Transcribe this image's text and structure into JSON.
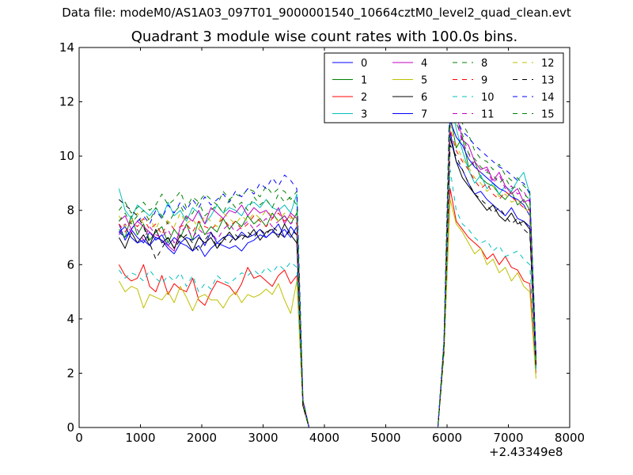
{
  "chart_data": {
    "type": "line",
    "suptitle": "Data file: modeM0/AS1A03_097T01_9000001540_10664cztM0_level2_quad_clean.evt",
    "title": "Quadrant 3 module wise count rates with 100.0s bins.",
    "xlabel": "",
    "ylabel": "",
    "x_offset_label": "+2.43349e8",
    "xlim": [
      0,
      8000
    ],
    "ylim": [
      0,
      14
    ],
    "xticks": [
      0,
      1000,
      2000,
      3000,
      4000,
      5000,
      6000,
      7000,
      8000
    ],
    "yticks": [
      0,
      2,
      4,
      6,
      8,
      10,
      12,
      14
    ],
    "legend_position": "top-right",
    "legend_columns": 4,
    "x": [
      650,
      750,
      850,
      950,
      1050,
      1150,
      1250,
      1350,
      1450,
      1550,
      1650,
      1750,
      1850,
      1950,
      2050,
      2150,
      2250,
      2350,
      2450,
      2550,
      2650,
      2750,
      2850,
      2950,
      3050,
      3150,
      3250,
      3350,
      3450,
      3550,
      3650,
      3750,
      5850,
      5950,
      6050,
      6150,
      6250,
      6350,
      6450,
      6550,
      6650,
      6750,
      6850,
      6950,
      7050,
      7150,
      7250,
      7350,
      7450
    ],
    "series": [
      {
        "name": "0",
        "color": "#0000ff",
        "dash": "solid",
        "values": [
          7.5,
          6.9,
          7.3,
          7.0,
          6.8,
          7.2,
          6.9,
          7.1,
          6.7,
          7.0,
          6.8,
          7.0,
          6.9,
          7.1,
          6.7,
          7.2,
          6.8,
          7.0,
          7.1,
          6.9,
          7.2,
          7.0,
          7.1,
          7.3,
          7.0,
          7.2,
          7.1,
          7.3,
          7.0,
          7.4,
          0.8,
          0,
          0,
          3.0,
          10.9,
          9.8,
          9.5,
          9.0,
          8.6,
          8.7,
          8.4,
          8.2,
          8.0,
          7.8,
          8.1,
          7.7,
          7.6,
          7.4,
          2.3
        ]
      },
      {
        "name": "1",
        "color": "#008000",
        "dash": "solid",
        "values": [
          7.3,
          7.0,
          7.8,
          7.1,
          7.5,
          6.9,
          7.2,
          7.4,
          6.8,
          7.3,
          7.0,
          7.5,
          6.9,
          7.6,
          7.1,
          7.4,
          7.2,
          7.7,
          7.3,
          7.6,
          7.4,
          7.8,
          7.5,
          7.7,
          7.4,
          7.9,
          7.6,
          7.8,
          7.5,
          7.9,
          0.9,
          0,
          0,
          3.0,
          11.5,
          10.3,
          10.7,
          9.6,
          9.8,
          9.2,
          9.0,
          8.9,
          8.6,
          8.4,
          8.7,
          8.2,
          8.4,
          8.0,
          2.4
        ]
      },
      {
        "name": "2",
        "color": "#ff0000",
        "dash": "solid",
        "values": [
          6.0,
          5.6,
          5.4,
          5.5,
          6.0,
          5.2,
          5.0,
          5.6,
          4.9,
          5.3,
          5.1,
          5.0,
          5.5,
          4.7,
          4.5,
          5.0,
          5.4,
          5.3,
          5.2,
          4.9,
          5.3,
          5.9,
          5.5,
          5.6,
          5.4,
          5.2,
          5.6,
          5.8,
          5.3,
          5.6,
          0.8,
          0,
          0,
          2.8,
          8.8,
          7.6,
          7.3,
          7.0,
          6.8,
          6.6,
          6.2,
          6.4,
          6.0,
          6.3,
          5.9,
          5.8,
          5.4,
          5.3,
          2.0
        ]
      },
      {
        "name": "3",
        "color": "#00bfbf",
        "dash": "solid",
        "values": [
          8.8,
          8.0,
          7.7,
          8.2,
          8.0,
          7.8,
          8.1,
          7.7,
          8.3,
          7.8,
          8.0,
          7.6,
          8.1,
          7.9,
          7.5,
          7.8,
          8.2,
          7.9,
          8.1,
          8.0,
          7.8,
          8.2,
          8.3,
          8.1,
          8.4,
          8.1,
          8.0,
          8.2,
          7.9,
          8.6,
          1.0,
          0,
          0,
          3.2,
          12.1,
          11.0,
          10.2,
          9.5,
          9.0,
          9.3,
          8.8,
          9.0,
          8.6,
          8.9,
          8.7,
          9.1,
          9.4,
          8.6,
          2.6
        ]
      },
      {
        "name": "4",
        "color": "#bf00bf",
        "dash": "solid",
        "values": [
          7.6,
          7.8,
          7.3,
          7.6,
          7.4,
          7.2,
          7.0,
          6.9,
          6.7,
          6.5,
          7.4,
          7.8,
          7.6,
          8.0,
          7.5,
          8.1,
          7.9,
          7.7,
          8.0,
          7.9,
          8.2,
          7.8,
          8.1,
          7.9,
          8.0,
          7.7,
          8.1,
          7.5,
          7.9,
          7.7,
          1.0,
          0,
          0,
          3.1,
          11.5,
          11.6,
          10.6,
          10.4,
          9.8,
          9.5,
          9.6,
          9.1,
          9.4,
          8.9,
          8.6,
          8.8,
          8.3,
          8.4,
          2.5
        ]
      },
      {
        "name": "5",
        "color": "#bfbf00",
        "dash": "solid",
        "values": [
          5.4,
          5.0,
          5.2,
          5.1,
          4.4,
          4.9,
          4.8,
          4.7,
          5.0,
          4.6,
          5.2,
          4.8,
          4.3,
          4.8,
          4.9,
          4.7,
          4.7,
          4.4,
          4.8,
          5.0,
          4.6,
          4.9,
          4.8,
          4.9,
          5.1,
          4.9,
          5.3,
          4.7,
          4.2,
          5.4,
          0.8,
          0,
          0,
          2.7,
          8.4,
          7.5,
          7.2,
          6.8,
          6.4,
          6.6,
          6.0,
          6.2,
          5.7,
          5.9,
          5.4,
          5.7,
          5.2,
          5.0,
          1.8
        ]
      },
      {
        "name": "6",
        "color": "#000000",
        "dash": "solid",
        "values": [
          7.0,
          6.6,
          7.2,
          6.8,
          7.1,
          6.7,
          7.3,
          6.8,
          7.0,
          6.6,
          7.1,
          6.9,
          6.5,
          7.0,
          6.8,
          7.0,
          6.6,
          6.9,
          7.2,
          6.9,
          7.1,
          7.0,
          7.3,
          6.9,
          7.2,
          7.3,
          7.0,
          7.5,
          7.1,
          6.8,
          0.8,
          0,
          0,
          2.9,
          10.7,
          9.8,
          9.2,
          8.9,
          8.6,
          8.3,
          8.0,
          8.2,
          7.8,
          7.6,
          7.9,
          7.5,
          7.6,
          7.3,
          2.2
        ]
      },
      {
        "name": "7",
        "color": "#0000ff",
        "dash": "solid",
        "values": [
          7.2,
          7.4,
          7.0,
          6.8,
          6.9,
          6.7,
          7.0,
          6.9,
          6.6,
          6.4,
          6.8,
          6.7,
          6.5,
          6.7,
          6.3,
          6.6,
          6.8,
          6.7,
          6.6,
          6.7,
          6.5,
          6.8,
          6.9,
          7.1,
          7.0,
          7.2,
          7.5,
          7.0,
          7.4,
          7.1,
          0.9,
          0,
          0,
          3.0,
          11.3,
          10.7,
          10.4,
          9.9,
          9.6,
          9.4,
          9.2,
          9.0,
          8.8,
          8.7,
          8.5,
          8.4,
          8.2,
          7.8,
          2.4
        ]
      },
      {
        "name": "8",
        "color": "#008000",
        "dash": "dashed",
        "values": [
          8.0,
          8.3,
          7.9,
          8.1,
          8.3,
          8.0,
          8.2,
          8.6,
          8.2,
          8.4,
          8.7,
          8.1,
          8.5,
          8.3,
          8.6,
          8.4,
          8.2,
          8.7,
          8.4,
          8.6,
          8.5,
          8.8,
          8.7,
          8.5,
          8.9,
          8.6,
          8.8,
          8.7,
          8.4,
          8.7,
          1.0,
          0,
          0,
          3.1,
          13.0,
          11.8,
          11.2,
          10.8,
          10.2,
          9.9,
          9.8,
          9.5,
          9.7,
          9.3,
          9.1,
          9.2,
          8.9,
          8.7,
          2.7
        ]
      },
      {
        "name": "9",
        "color": "#ff0000",
        "dash": "dashed",
        "values": [
          7.5,
          7.2,
          7.6,
          7.4,
          7.7,
          7.3,
          7.5,
          7.1,
          7.6,
          7.3,
          7.4,
          7.5,
          7.2,
          7.6,
          7.4,
          7.3,
          7.5,
          7.7,
          7.4,
          7.6,
          7.3,
          7.5,
          7.8,
          7.6,
          7.4,
          7.7,
          7.9,
          7.6,
          7.8,
          7.5,
          0.9,
          0,
          0,
          3.0,
          11.0,
          10.2,
          9.8,
          9.5,
          9.1,
          8.8,
          9.0,
          8.6,
          8.4,
          8.7,
          8.5,
          8.3,
          8.1,
          8.0,
          2.5
        ]
      },
      {
        "name": "10",
        "color": "#00bfbf",
        "dash": "dashed",
        "values": [
          5.8,
          5.5,
          5.7,
          5.6,
          5.4,
          5.8,
          5.5,
          5.3,
          5.6,
          5.4,
          5.7,
          5.2,
          5.6,
          5.0,
          5.3,
          5.1,
          5.6,
          5.4,
          5.3,
          5.5,
          5.7,
          5.6,
          5.8,
          5.6,
          5.9,
          5.7,
          6.0,
          5.8,
          6.1,
          5.9,
          0.9,
          0,
          0,
          2.9,
          9.5,
          8.0,
          7.5,
          7.3,
          7.0,
          6.8,
          6.9,
          6.5,
          6.7,
          6.3,
          6.4,
          6.5,
          6.2,
          6.0,
          2.1
        ]
      },
      {
        "name": "11",
        "color": "#bf00bf",
        "dash": "dashed",
        "values": [
          7.1,
          7.5,
          7.2,
          7.3,
          6.9,
          7.4,
          7.1,
          7.0,
          7.3,
          6.8,
          7.2,
          7.4,
          7.0,
          7.3,
          7.1,
          7.2,
          6.9,
          7.3,
          7.5,
          7.2,
          7.4,
          7.6,
          7.3,
          7.5,
          7.7,
          7.4,
          7.6,
          7.8,
          7.5,
          7.7,
          1.0,
          0,
          0,
          3.0,
          12.4,
          11.3,
          10.5,
          10.1,
          9.6,
          9.4,
          9.5,
          9.0,
          9.3,
          8.8,
          8.9,
          8.6,
          8.7,
          8.3,
          2.6
        ]
      },
      {
        "name": "12",
        "color": "#bfbf00",
        "dash": "dashed",
        "values": [
          7.8,
          7.4,
          7.6,
          7.9,
          7.5,
          7.7,
          7.3,
          7.8,
          7.6,
          7.4,
          7.9,
          7.5,
          7.7,
          7.3,
          7.8,
          7.6,
          7.4,
          7.9,
          7.7,
          7.5,
          7.8,
          7.6,
          7.9,
          7.7,
          8.0,
          7.8,
          7.6,
          7.9,
          7.7,
          7.8,
          0.9,
          0,
          0,
          3.0,
          11.2,
          10.4,
          9.9,
          9.6,
          9.2,
          9.0,
          8.7,
          8.9,
          8.5,
          8.6,
          8.3,
          8.4,
          8.1,
          7.9,
          2.4
        ]
      },
      {
        "name": "13",
        "color": "#000000",
        "dash": "dashed",
        "values": [
          8.4,
          8.2,
          8.0,
          7.8,
          7.4,
          6.8,
          6.2,
          6.6,
          7.0,
          6.6,
          6.9,
          7.1,
          6.8,
          6.5,
          6.9,
          7.2,
          6.6,
          7.0,
          6.8,
          7.1,
          6.9,
          7.2,
          7.0,
          7.3,
          7.1,
          7.4,
          7.2,
          7.0,
          7.3,
          7.1,
          0.8,
          0,
          0,
          2.8,
          10.4,
          10.0,
          9.5,
          9.0,
          8.6,
          8.4,
          8.2,
          7.9,
          8.1,
          7.8,
          7.5,
          7.7,
          7.3,
          7.1,
          2.3
        ]
      },
      {
        "name": "14",
        "color": "#0000ff",
        "dash": "dashed",
        "values": [
          7.2,
          7.0,
          7.3,
          7.6,
          7.8,
          7.5,
          8.0,
          7.7,
          8.2,
          7.9,
          8.3,
          8.0,
          8.4,
          8.1,
          8.5,
          8.2,
          8.4,
          8.6,
          8.3,
          8.7,
          8.5,
          8.8,
          8.6,
          9.0,
          8.8,
          9.2,
          8.9,
          9.3,
          9.1,
          8.8,
          1.0,
          0,
          0,
          3.2,
          12.2,
          11.4,
          10.9,
          10.7,
          10.4,
          10.2,
          10.0,
          9.8,
          9.6,
          9.5,
          9.3,
          9.1,
          9.0,
          8.6,
          2.7
        ]
      },
      {
        "name": "15",
        "color": "#008000",
        "dash": "dashed",
        "values": [
          7.6,
          7.9,
          7.5,
          7.8,
          8.0,
          7.6,
          8.1,
          7.8,
          7.5,
          7.9,
          8.2,
          7.7,
          7.9,
          8.3,
          7.8,
          8.0,
          8.2,
          7.9,
          8.4,
          8.1,
          8.3,
          8.0,
          8.5,
          8.2,
          8.4,
          8.1,
          8.6,
          8.3,
          8.5,
          8.2,
          1.0,
          0,
          0,
          3.1,
          12.8,
          11.2,
          10.8,
          10.1,
          9.9,
          9.6,
          9.4,
          9.3,
          9.0,
          9.2,
          8.8,
          8.9,
          8.6,
          8.4,
          2.5
        ]
      }
    ]
  }
}
